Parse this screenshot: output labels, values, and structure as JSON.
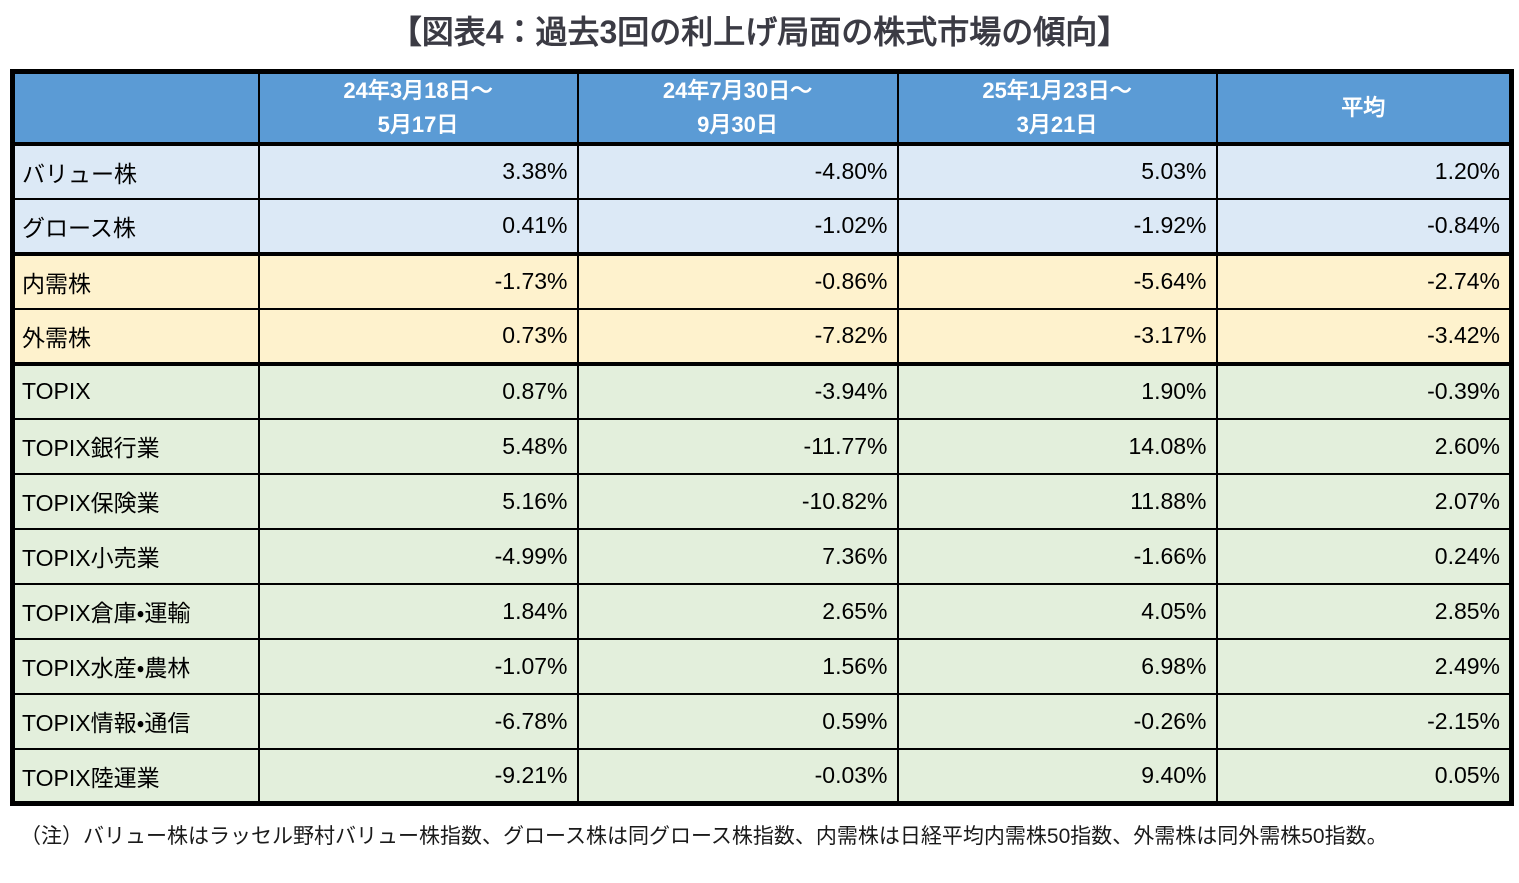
{
  "page": {
    "title": "【図表4：過去3回の利上げ局面の株式市場の傾向】",
    "note": "（注）バリュー株はラッセル野村バリュー株指数、グロース株は同グロース株指数、内需株は日経平均内需株50指数、外需株は同外需株50指数。"
  },
  "colors": {
    "header_bg": "#5B9BD5",
    "header_text": "#FFFFFF",
    "group_blue": "#DCE9F6",
    "group_yellow": "#FEF2CD",
    "group_green": "#E3EFDC",
    "border_color": "#000000",
    "title_color": "#3B3B44",
    "note_color": "#1A1A1A"
  },
  "chart_data": {
    "type": "table",
    "title": "図表4：過去3回の利上げ局面の株式市場の傾向",
    "header": {
      "corner": "",
      "periods": [
        {
          "line1": "24年3月18日～",
          "line2": "5月17日"
        },
        {
          "line1": "24年7月30日～",
          "line2": "9月30日"
        },
        {
          "line1": "25年1月23日～",
          "line2": "3月21日"
        },
        {
          "line1": "平均",
          "line2": ""
        }
      ]
    },
    "rows": [
      {
        "label": "バリュー株",
        "group": "blue",
        "values": [
          "3.38%",
          "-4.80%",
          "5.03%",
          "1.20%"
        ]
      },
      {
        "label": "グロース株",
        "group": "blue",
        "values": [
          "0.41%",
          "-1.02%",
          "-1.92%",
          "-0.84%"
        ]
      },
      {
        "label": "内需株",
        "group": "yellow",
        "values": [
          "-1.73%",
          "-0.86%",
          "-5.64%",
          "-2.74%"
        ]
      },
      {
        "label": "外需株",
        "group": "yellow",
        "values": [
          "0.73%",
          "-7.82%",
          "-3.17%",
          "-3.42%"
        ]
      },
      {
        "label": "TOPIX",
        "group": "green",
        "values": [
          "0.87%",
          "-3.94%",
          "1.90%",
          "-0.39%"
        ]
      },
      {
        "label": "TOPIX銀行業",
        "group": "green",
        "values": [
          "5.48%",
          "-11.77%",
          "14.08%",
          "2.60%"
        ]
      },
      {
        "label": "TOPIX保険業",
        "group": "green",
        "values": [
          "5.16%",
          "-10.82%",
          "11.88%",
          "2.07%"
        ]
      },
      {
        "label": "TOPIX小売業",
        "group": "green",
        "values": [
          "-4.99%",
          "7.36%",
          "-1.66%",
          "0.24%"
        ]
      },
      {
        "label": "TOPIX倉庫・運輸",
        "group": "green",
        "values": [
          "1.84%",
          "2.65%",
          "4.05%",
          "2.85%"
        ]
      },
      {
        "label": "TOPIX水産・農林",
        "group": "green",
        "values": [
          "-1.07%",
          "1.56%",
          "6.98%",
          "2.49%"
        ]
      },
      {
        "label": "TOPIX情報・通信",
        "group": "green",
        "values": [
          "-6.78%",
          "0.59%",
          "-0.26%",
          "-2.15%"
        ]
      },
      {
        "label": "TOPIX陸運業",
        "group": "green",
        "values": [
          "-9.21%",
          "-0.03%",
          "9.40%",
          "0.05%"
        ]
      }
    ]
  }
}
